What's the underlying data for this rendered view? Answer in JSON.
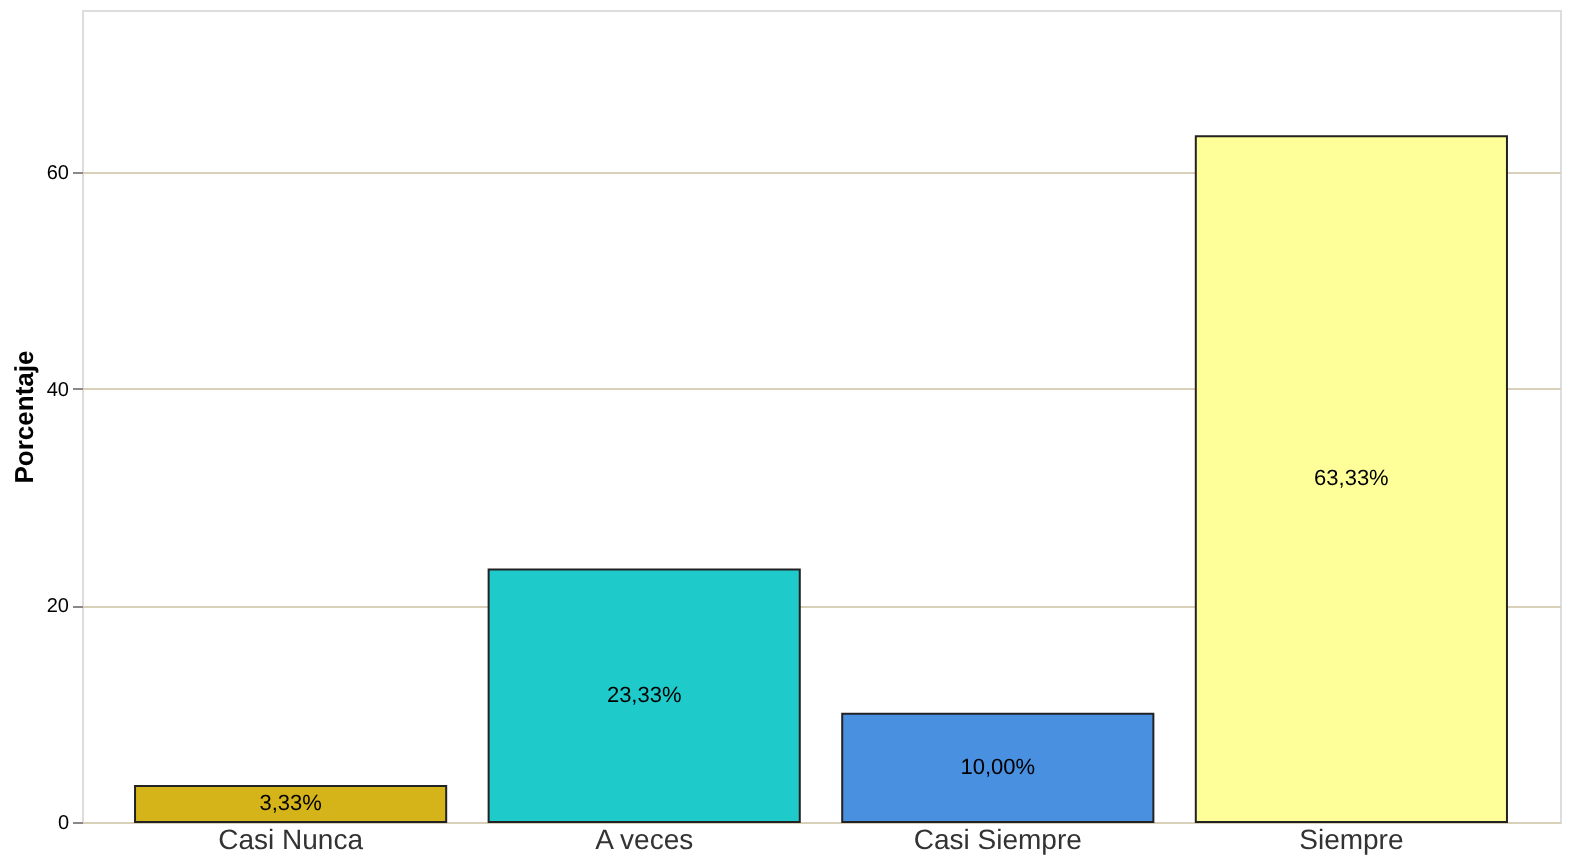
{
  "chart_data": {
    "type": "bar",
    "ylabel": "Porcentaje",
    "categories": [
      "Casi Nunca",
      "A veces",
      "Casi Siempre",
      "Siempre"
    ],
    "values": [
      3.33,
      23.33,
      10.0,
      63.33
    ],
    "colors": [
      "#d4b418",
      "#1fcaca",
      "#4a90e0",
      "#ffff99"
    ],
    "value_labels": [
      "3,33%",
      "23,33%",
      "10,00%",
      "63,33%"
    ],
    "ylim": [
      0,
      75
    ],
    "yticks": [
      0,
      20,
      40,
      60
    ],
    "grid": "y",
    "legend": false
  }
}
